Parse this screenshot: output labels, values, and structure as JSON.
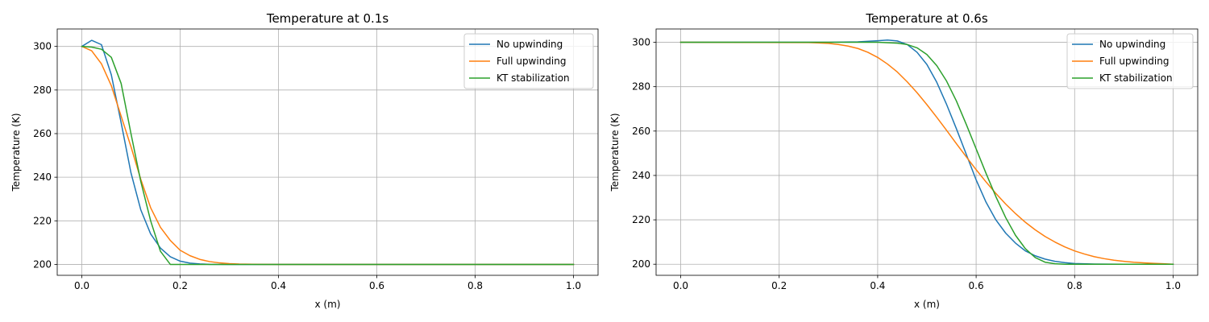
{
  "chart_data": [
    {
      "type": "line",
      "title": "Temperature at 0.1s",
      "xlabel": "x (m)",
      "ylabel": "Temperature (K)",
      "xlim": [
        -0.05,
        1.05
      ],
      "ylim": [
        195,
        308
      ],
      "xticks": [
        0.0,
        0.2,
        0.4,
        0.6,
        0.8,
        1.0
      ],
      "xtick_labels": [
        "0.0",
        "0.2",
        "0.4",
        "0.6",
        "0.8",
        "1.0"
      ],
      "yticks": [
        200,
        220,
        240,
        260,
        280,
        300
      ],
      "ytick_labels": [
        "200",
        "220",
        "240",
        "260",
        "280",
        "300"
      ],
      "grid": true,
      "legend_position": "top-right",
      "series": [
        {
          "name": "No upwinding",
          "color": "#1f77b4",
          "points": [
            [
              0.0,
              300
            ],
            [
              0.02,
              302.8
            ],
            [
              0.04,
              300.8
            ],
            [
              0.06,
              287
            ],
            [
              0.08,
              265
            ],
            [
              0.1,
              242
            ],
            [
              0.12,
              225
            ],
            [
              0.14,
              214
            ],
            [
              0.16,
              207.5
            ],
            [
              0.18,
              203.5
            ],
            [
              0.2,
              201.5
            ],
            [
              0.22,
              200.6
            ],
            [
              0.24,
              200.2
            ],
            [
              0.26,
              200.05
            ],
            [
              0.3,
              200
            ],
            [
              1.0,
              200
            ]
          ]
        },
        {
          "name": "Full upwinding",
          "color": "#ff7f0e",
          "points": [
            [
              0.0,
              300
            ],
            [
              0.02,
              298
            ],
            [
              0.04,
              292
            ],
            [
              0.06,
              282
            ],
            [
              0.08,
              268
            ],
            [
              0.1,
              254
            ],
            [
              0.12,
              239
            ],
            [
              0.14,
              226
            ],
            [
              0.16,
              217
            ],
            [
              0.18,
              211
            ],
            [
              0.2,
              206.5
            ],
            [
              0.22,
              204
            ],
            [
              0.24,
              202.3
            ],
            [
              0.26,
              201.3
            ],
            [
              0.28,
              200.7
            ],
            [
              0.3,
              200.35
            ],
            [
              0.32,
              200.15
            ],
            [
              0.36,
              200.05
            ],
            [
              0.4,
              200
            ],
            [
              1.0,
              200
            ]
          ]
        },
        {
          "name": "KT stabilization",
          "color": "#2ca02c",
          "points": [
            [
              0.0,
              300
            ],
            [
              0.02,
              299.7
            ],
            [
              0.04,
              298.7
            ],
            [
              0.06,
              295
            ],
            [
              0.08,
              283
            ],
            [
              0.1,
              260
            ],
            [
              0.12,
              238
            ],
            [
              0.14,
              220
            ],
            [
              0.16,
              206
            ],
            [
              0.18,
              200
            ],
            [
              1.0,
              200
            ]
          ]
        }
      ]
    },
    {
      "type": "line",
      "title": "Temperature at 0.6s",
      "xlabel": "x (m)",
      "ylabel": "Temperature (K)",
      "xlim": [
        -0.05,
        1.05
      ],
      "ylim": [
        195,
        306
      ],
      "xticks": [
        0.0,
        0.2,
        0.4,
        0.6,
        0.8,
        1.0
      ],
      "xtick_labels": [
        "0.0",
        "0.2",
        "0.4",
        "0.6",
        "0.8",
        "1.0"
      ],
      "yticks": [
        200,
        220,
        240,
        260,
        280,
        300
      ],
      "ytick_labels": [
        "200",
        "220",
        "240",
        "260",
        "280",
        "300"
      ],
      "grid": true,
      "legend_position": "top-right",
      "series": [
        {
          "name": "No upwinding",
          "color": "#1f77b4",
          "points": [
            [
              0.0,
              300
            ],
            [
              0.3,
              300
            ],
            [
              0.36,
              300.2
            ],
            [
              0.4,
              300.7
            ],
            [
              0.42,
              301
            ],
            [
              0.44,
              300.6
            ],
            [
              0.46,
              299
            ],
            [
              0.48,
              295.5
            ],
            [
              0.5,
              290
            ],
            [
              0.52,
              282
            ],
            [
              0.54,
              272
            ],
            [
              0.56,
              261
            ],
            [
              0.58,
              249.5
            ],
            [
              0.6,
              238
            ],
            [
              0.62,
              228
            ],
            [
              0.64,
              220
            ],
            [
              0.66,
              214
            ],
            [
              0.68,
              209.5
            ],
            [
              0.7,
              206
            ],
            [
              0.72,
              203.8
            ],
            [
              0.74,
              202.3
            ],
            [
              0.76,
              201.3
            ],
            [
              0.78,
              200.7
            ],
            [
              0.8,
              200.3
            ],
            [
              0.84,
              200.1
            ],
            [
              0.9,
              200
            ],
            [
              1.0,
              200
            ]
          ]
        },
        {
          "name": "Full upwinding",
          "color": "#ff7f0e",
          "points": [
            [
              0.0,
              300
            ],
            [
              0.26,
              299.9
            ],
            [
              0.3,
              299.5
            ],
            [
              0.32,
              299
            ],
            [
              0.34,
              298.3
            ],
            [
              0.36,
              297.2
            ],
            [
              0.38,
              295.5
            ],
            [
              0.4,
              293.2
            ],
            [
              0.42,
              290.2
            ],
            [
              0.44,
              286.6
            ],
            [
              0.46,
              282.2
            ],
            [
              0.48,
              277.3
            ],
            [
              0.5,
              271.9
            ],
            [
              0.52,
              266.2
            ],
            [
              0.54,
              260.3
            ],
            [
              0.56,
              254.3
            ],
            [
              0.58,
              248.4
            ],
            [
              0.6,
              242.6
            ],
            [
              0.62,
              237.1
            ],
            [
              0.64,
              231.9
            ],
            [
              0.66,
              227.1
            ],
            [
              0.68,
              222.8
            ],
            [
              0.7,
              218.9
            ],
            [
              0.72,
              215.5
            ],
            [
              0.74,
              212.5
            ],
            [
              0.76,
              210
            ],
            [
              0.78,
              207.8
            ],
            [
              0.8,
              206
            ],
            [
              0.82,
              204.6
            ],
            [
              0.84,
              203.4
            ],
            [
              0.86,
              202.5
            ],
            [
              0.88,
              201.8
            ],
            [
              0.9,
              201.3
            ],
            [
              0.92,
              200.9
            ],
            [
              0.94,
              200.6
            ],
            [
              0.96,
              200.4
            ],
            [
              0.98,
              200.2
            ],
            [
              1.0,
              200
            ]
          ]
        },
        {
          "name": "KT stabilization",
          "color": "#2ca02c",
          "points": [
            [
              0.0,
              300
            ],
            [
              0.3,
              300
            ],
            [
              0.4,
              300
            ],
            [
              0.44,
              299.6
            ],
            [
              0.46,
              299
            ],
            [
              0.48,
              297.5
            ],
            [
              0.5,
              294.5
            ],
            [
              0.52,
              289.5
            ],
            [
              0.54,
              282.5
            ],
            [
              0.56,
              273.5
            ],
            [
              0.58,
              263
            ],
            [
              0.6,
              252
            ],
            [
              0.62,
              241
            ],
            [
              0.64,
              230.5
            ],
            [
              0.66,
              221
            ],
            [
              0.68,
              213
            ],
            [
              0.7,
              207
            ],
            [
              0.72,
              203
            ],
            [
              0.74,
              200.9
            ],
            [
              0.76,
              200.2
            ],
            [
              0.78,
              200
            ],
            [
              1.0,
              200
            ]
          ]
        }
      ]
    }
  ]
}
